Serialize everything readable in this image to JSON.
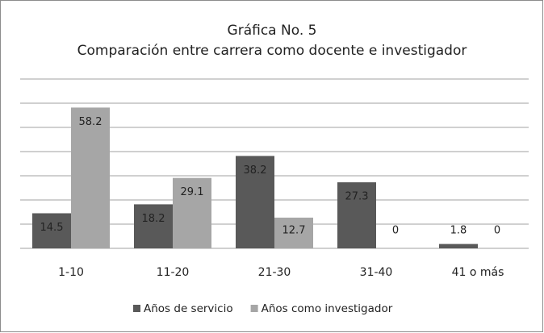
{
  "chart_data": {
    "type": "bar",
    "title": "Gráfica No. 5",
    "subtitle": "Comparación entre carrera como docente e investigador",
    "categories": [
      "1-10",
      "11-20",
      "21-30",
      "31-40",
      "41 o más"
    ],
    "series": [
      {
        "name": "Años de servicio",
        "color": "#595959",
        "values": [
          14.5,
          18.2,
          38.2,
          27.3,
          1.8
        ]
      },
      {
        "name": "Años como investigador",
        "color": "#a6a6a6",
        "values": [
          58.2,
          29.1,
          12.7,
          0,
          0
        ]
      }
    ],
    "ylim": [
      0,
      70
    ],
    "yticks": [
      0,
      10,
      20,
      30,
      40,
      50,
      60,
      70
    ],
    "grid": true,
    "legend": "bottom"
  }
}
